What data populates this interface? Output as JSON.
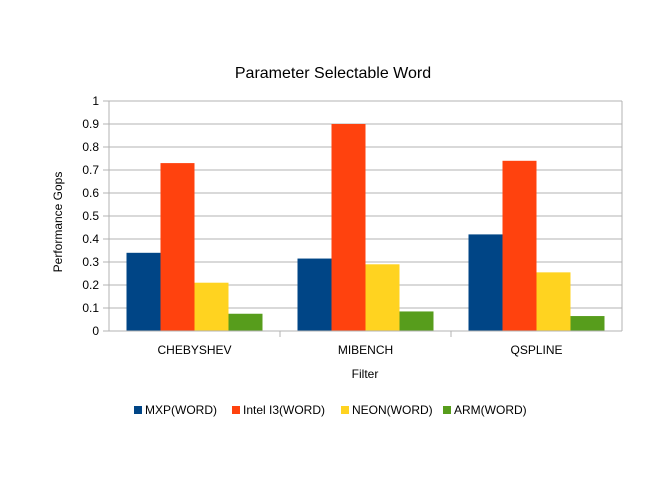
{
  "chart_data": {
    "type": "bar",
    "title": "Parameter Selectable Word",
    "xlabel": "Filter",
    "ylabel": "Performance Gops",
    "categories": [
      "CHEBYSHEV",
      "MIBENCH",
      "QSPLINE"
    ],
    "ylim": [
      0,
      1
    ],
    "yticks": [
      "0",
      "0.1",
      "0.2",
      "0.3",
      "0.4",
      "0.5",
      "0.6",
      "0.7",
      "0.8",
      "0.9",
      "1"
    ],
    "grid": true,
    "legend_position": "bottom",
    "series": [
      {
        "name": "MXP(WORD)",
        "color": "#004586",
        "values": [
          0.34,
          0.315,
          0.42
        ]
      },
      {
        "name": "Intel I3(WORD)",
        "color": "#ff420e",
        "values": [
          0.73,
          0.9,
          0.74
        ]
      },
      {
        "name": "NEON(WORD)",
        "color": "#ffd320",
        "values": [
          0.21,
          0.29,
          0.255
        ]
      },
      {
        "name": "ARM(WORD)",
        "color": "#579d1c",
        "values": [
          0.075,
          0.085,
          0.065
        ]
      }
    ]
  }
}
